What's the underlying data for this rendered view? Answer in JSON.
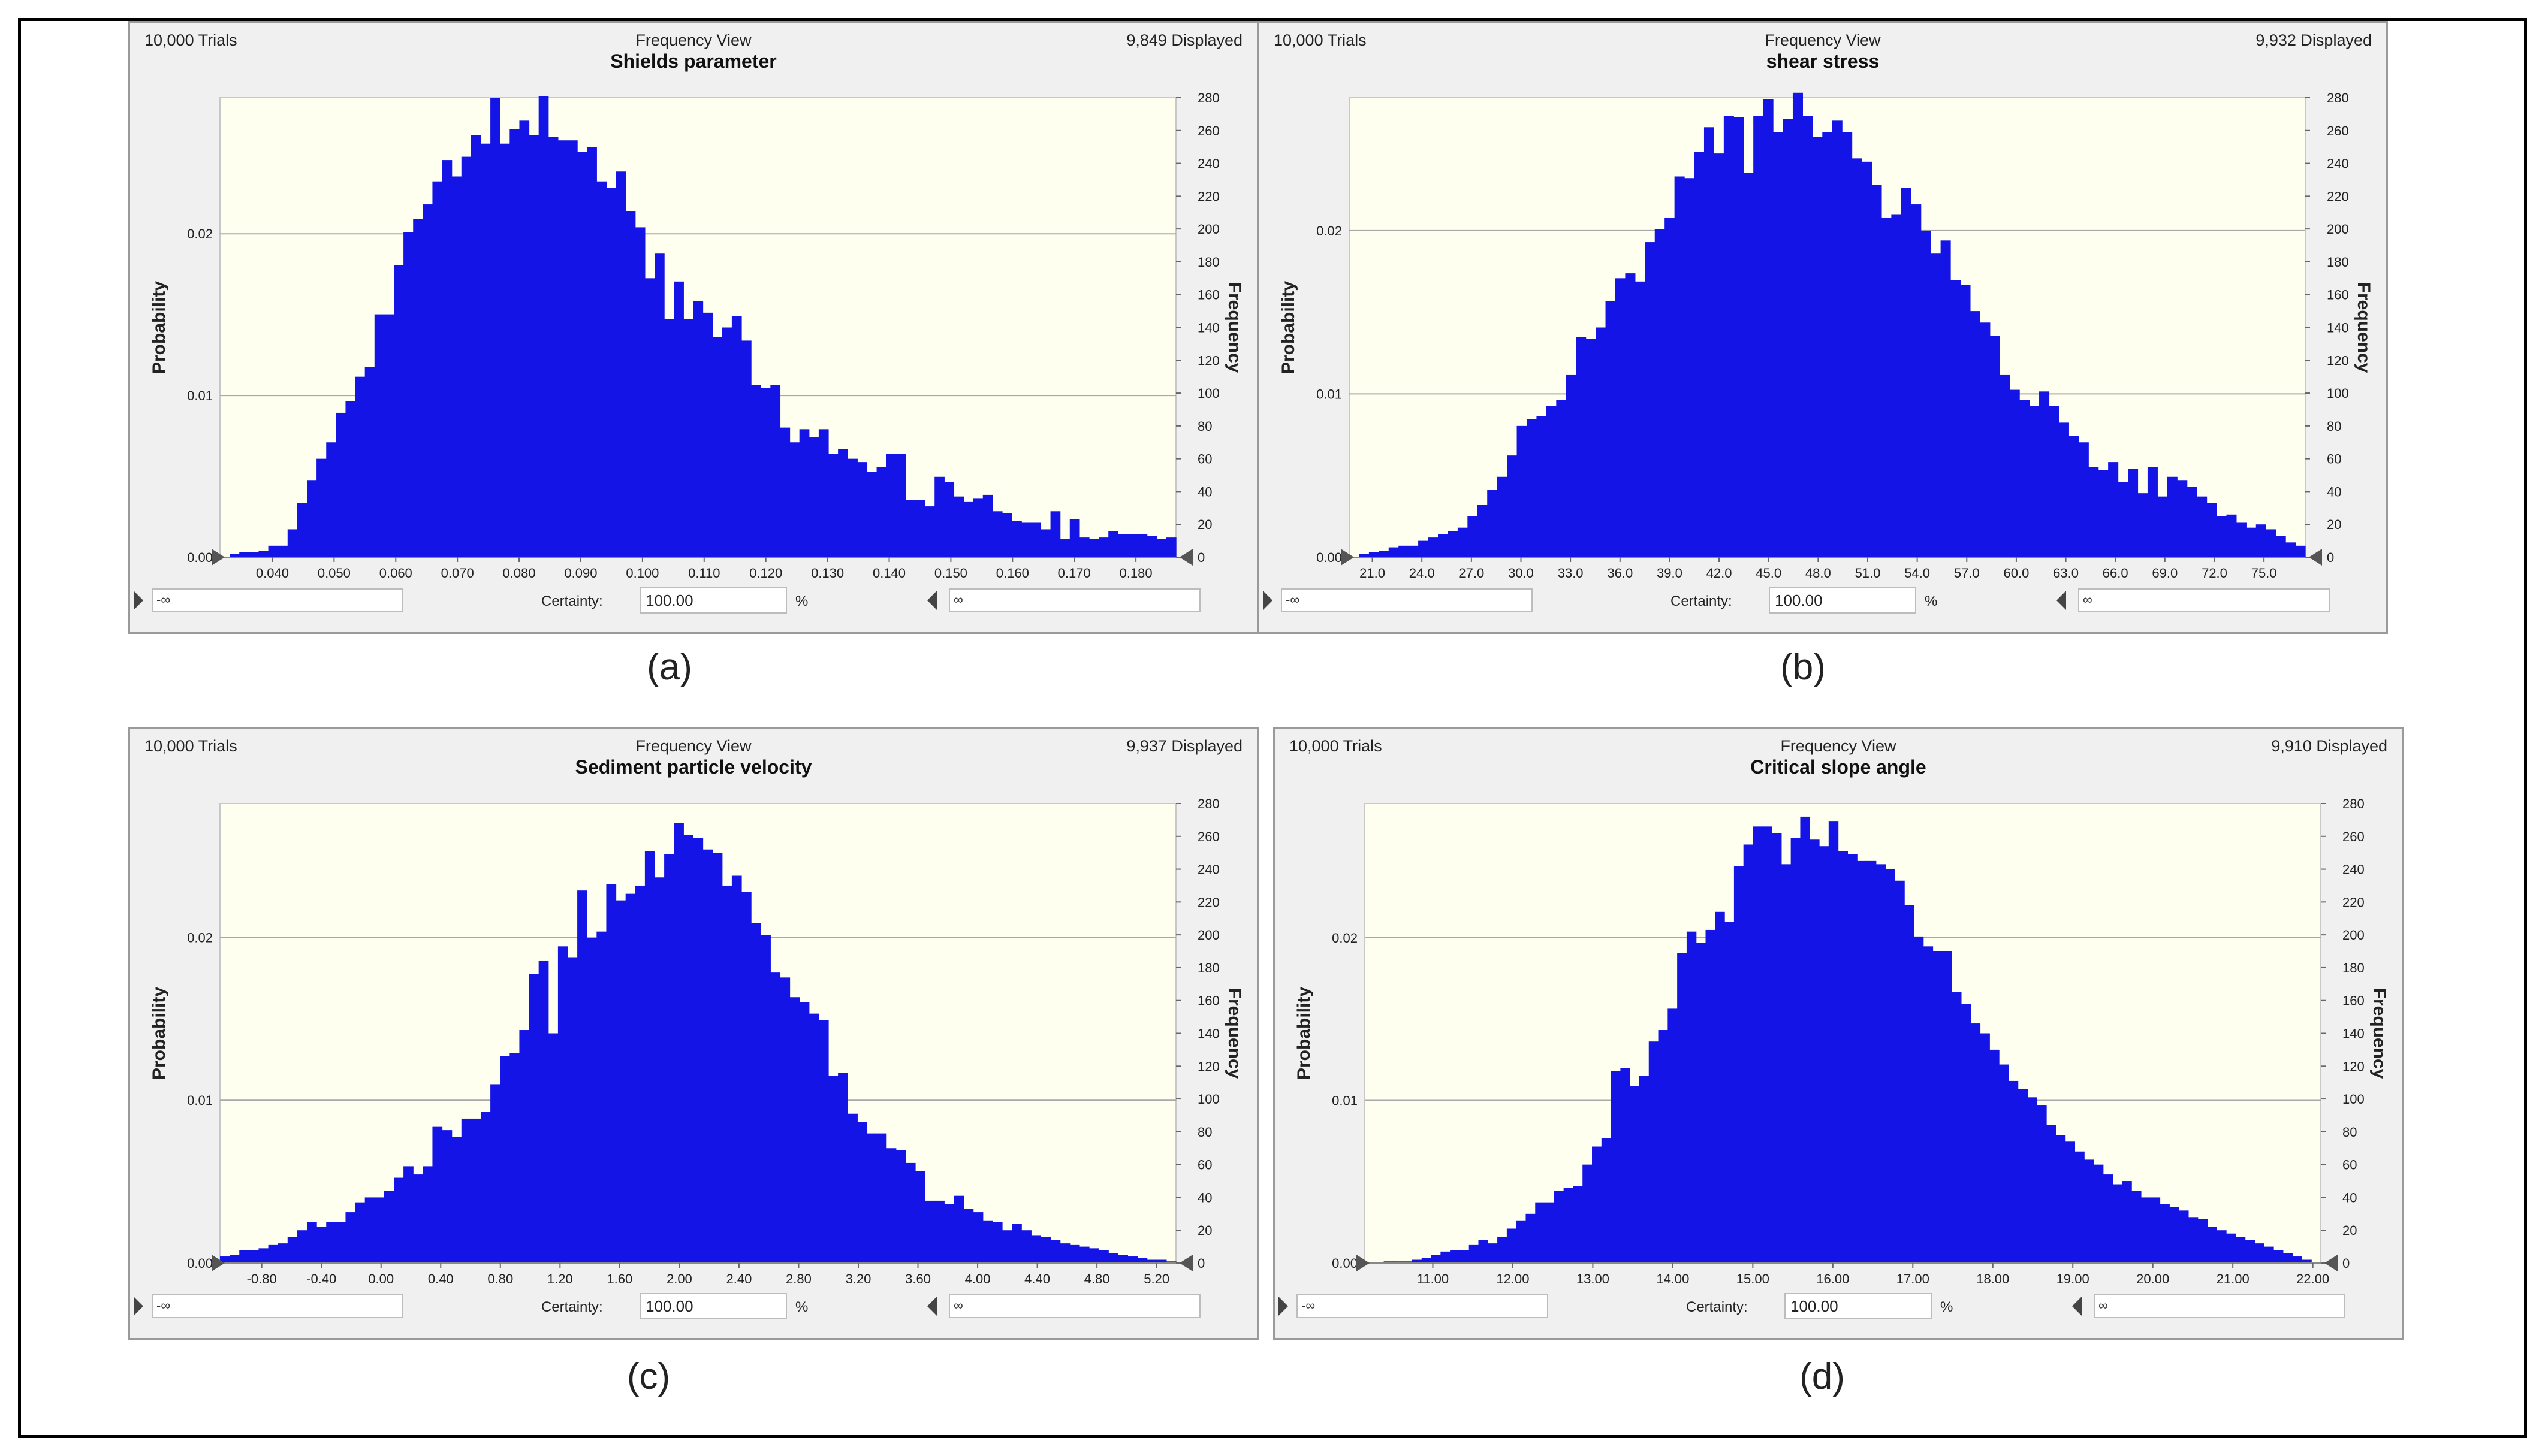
{
  "common": {
    "view_label": "Frequency View",
    "certainty_label": "Certainty:",
    "percent_label": "%",
    "left_field_value": "-∞",
    "right_field_value": "∞",
    "ylabel_left": "Probability",
    "ylabel_right": "Frequency",
    "bar_color": "#1414e6",
    "plot_bg": "#fffff0"
  },
  "chart_data": [
    {
      "type": "bar",
      "title": "Shields parameter",
      "trials": "10,000 Trials",
      "displayed": "9,849 Displayed",
      "certainty": "100.00",
      "caption": "(a)",
      "xlim": [
        0.0315,
        0.1865
      ],
      "x_ticks": [
        "0.040",
        "0.050",
        "0.060",
        "0.070",
        "0.080",
        "0.090",
        "0.100",
        "0.110",
        "0.120",
        "0.130",
        "0.140",
        "0.150",
        "0.160",
        "0.170",
        "0.180"
      ],
      "y_prob_ticks": [
        "0.00",
        "0.01",
        "0.02"
      ],
      "y_freq_ticks": [
        "0",
        "20",
        "40",
        "60",
        "80",
        "100",
        "120",
        "140",
        "160",
        "180",
        "200",
        "220",
        "240",
        "260",
        "280"
      ],
      "freq_max": 280,
      "prob_per_freq": 0.0001015,
      "frequencies": [
        0,
        2,
        3,
        3,
        4,
        7,
        7,
        17,
        33,
        47,
        60,
        70,
        88,
        95,
        110,
        116,
        148,
        148,
        178,
        198,
        206,
        215,
        229,
        242,
        232,
        244,
        257,
        252,
        280,
        252,
        261,
        266,
        257,
        281,
        256,
        254,
        254,
        247,
        250,
        229,
        225,
        235,
        211,
        201,
        170,
        185,
        145,
        168,
        145,
        156,
        149,
        134,
        140,
        147,
        132,
        105,
        103,
        105,
        79,
        70,
        78,
        73,
        78,
        63,
        66,
        60,
        58,
        52,
        55,
        63,
        63,
        35,
        35,
        31,
        49,
        46,
        37,
        34,
        36,
        38,
        28,
        27,
        22,
        21,
        21,
        17,
        28,
        11,
        23,
        12,
        11,
        12,
        16,
        14,
        14,
        14,
        13,
        11,
        12
      ]
    },
    {
      "type": "bar",
      "title": "shear stress",
      "trials": "10,000 Trials",
      "displayed": "9,932 Displayed",
      "certainty": "100.00",
      "caption": "(b)",
      "xlim": [
        19.6,
        77.5
      ],
      "x_ticks": [
        "21.0",
        "24.0",
        "27.0",
        "30.0",
        "33.0",
        "36.0",
        "39.0",
        "42.0",
        "45.0",
        "48.0",
        "51.0",
        "54.0",
        "57.0",
        "60.0",
        "63.0",
        "66.0",
        "69.0",
        "72.0",
        "75.0"
      ],
      "y_prob_ticks": [
        "0.00",
        "0.01",
        "0.02"
      ],
      "y_freq_ticks": [
        "0",
        "20",
        "40",
        "60",
        "80",
        "100",
        "120",
        "140",
        "160",
        "180",
        "200",
        "220",
        "240",
        "260",
        "280"
      ],
      "freq_max": 280,
      "prob_per_freq": 0.0001005,
      "frequencies": [
        0,
        2,
        3,
        4,
        6,
        7,
        7,
        10,
        12,
        14,
        16,
        18,
        25,
        32,
        41,
        49,
        62,
        80,
        84,
        86,
        92,
        96,
        111,
        134,
        133,
        140,
        156,
        170,
        173,
        168,
        192,
        200,
        207,
        232,
        231,
        247,
        262,
        246,
        269,
        268,
        234,
        269,
        279,
        259,
        267,
        283,
        269,
        256,
        259,
        266,
        259,
        243,
        241,
        227,
        207,
        209,
        225,
        215,
        199,
        185,
        193,
        169,
        166,
        150,
        143,
        135,
        111,
        102,
        96,
        92,
        101,
        92,
        82,
        74,
        70,
        55,
        53,
        58,
        46,
        54,
        39,
        55,
        37,
        49,
        47,
        43,
        37,
        33,
        25,
        26,
        21,
        18,
        20,
        17,
        13,
        9,
        7
      ]
    },
    {
      "type": "bar",
      "title": "Sediment particle velocity",
      "trials": "10,000 Trials",
      "displayed": "9,937 Displayed",
      "certainty": "100.00",
      "caption": "(c)",
      "xlim": [
        -1.08,
        5.33
      ],
      "x_ticks": [
        "-0.80",
        "-0.40",
        "0.00",
        "0.40",
        "0.80",
        "1.20",
        "1.60",
        "2.00",
        "2.40",
        "2.80",
        "3.20",
        "3.60",
        "4.00",
        "4.40",
        "4.80",
        "5.20"
      ],
      "y_prob_ticks": [
        "0.00",
        "0.01",
        "0.02"
      ],
      "y_freq_ticks": [
        "0",
        "20",
        "40",
        "60",
        "80",
        "100",
        "120",
        "140",
        "160",
        "180",
        "200",
        "220",
        "240",
        "260",
        "280"
      ],
      "freq_max": 280,
      "prob_per_freq": 0.0001008,
      "frequencies": [
        4,
        5,
        8,
        8,
        9,
        11,
        12,
        16,
        20,
        25,
        22,
        25,
        25,
        31,
        37,
        40,
        40,
        44,
        52,
        59,
        54,
        59,
        83,
        81,
        77,
        88,
        88,
        92,
        109,
        126,
        128,
        142,
        176,
        184,
        140,
        193,
        186,
        227,
        198,
        202,
        231,
        221,
        225,
        230,
        251,
        235,
        249,
        268,
        261,
        259,
        252,
        250,
        230,
        236,
        226,
        207,
        200,
        177,
        174,
        162,
        159,
        152,
        148,
        114,
        116,
        91,
        86,
        79,
        79,
        70,
        69,
        61,
        56,
        38,
        38,
        36,
        41,
        33,
        31,
        26,
        25,
        20,
        24,
        20,
        17,
        16,
        14,
        12,
        11,
        10,
        9,
        8,
        6,
        5,
        4,
        3,
        2,
        2,
        1
      ]
    },
    {
      "type": "bar",
      "title": "Critical slope angle",
      "trials": "10,000 Trials",
      "displayed": "9,910 Displayed",
      "certainty": "100.00",
      "caption": "(d)",
      "xlim": [
        10.15,
        22.1
      ],
      "x_ticks": [
        "11.00",
        "12.00",
        "13.00",
        "14.00",
        "15.00",
        "16.00",
        "17.00",
        "18.00",
        "19.00",
        "20.00",
        "21.00",
        "22.00"
      ],
      "y_prob_ticks": [
        "0.00",
        "0.01",
        "0.02"
      ],
      "y_freq_ticks": [
        "0",
        "20",
        "40",
        "60",
        "80",
        "100",
        "120",
        "140",
        "160",
        "180",
        "200",
        "220",
        "240",
        "260",
        "280"
      ],
      "freq_max": 280,
      "prob_per_freq": 0.0001009,
      "frequencies": [
        0,
        0,
        1,
        1,
        1,
        2,
        3,
        5,
        7,
        8,
        8,
        11,
        14,
        12,
        16,
        21,
        26,
        30,
        37,
        37,
        44,
        46,
        47,
        60,
        71,
        76,
        117,
        119,
        108,
        114,
        135,
        142,
        155,
        189,
        202,
        195,
        203,
        214,
        208,
        242,
        255,
        266,
        266,
        262,
        243,
        259,
        272,
        258,
        254,
        269,
        251,
        249,
        245,
        245,
        243,
        240,
        233,
        218,
        199,
        193,
        190,
        190,
        165,
        158,
        146,
        140,
        130,
        121,
        111,
        106,
        101,
        96,
        84,
        78,
        74,
        68,
        63,
        60,
        54,
        48,
        50,
        44,
        40,
        40,
        36,
        34,
        32,
        28,
        27,
        22,
        20,
        18,
        16,
        14,
        12,
        10,
        8,
        6,
        4,
        2,
        0
      ]
    }
  ]
}
